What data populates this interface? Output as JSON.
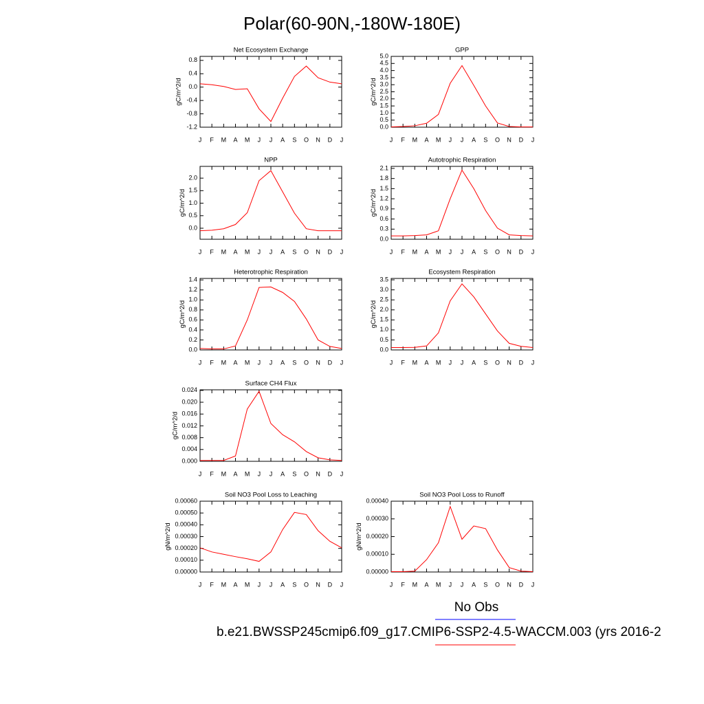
{
  "title": "Polar(60-90N,-180W-180E)",
  "legend": [
    {
      "label": "No Obs",
      "color": "#0000ff"
    },
    {
      "label": "b.e21.BWSSP245cmip6.f09_g17.CMIP6-SSP2-4.5-WACCM.003 (yrs 2016-2",
      "color": "#ff0000"
    }
  ],
  "chart_data": [
    {
      "type": "line",
      "title": "Net Ecosystem Exchange",
      "ylabel": "gC/m^2/d",
      "color": "#ff0000",
      "categories": [
        "J",
        "F",
        "M",
        "A",
        "M",
        "J",
        "J",
        "A",
        "S",
        "O",
        "N",
        "D",
        "J"
      ],
      "values": [
        0.1,
        0.07,
        0.02,
        -0.07,
        -0.05,
        -0.65,
        -1.03,
        -0.33,
        0.32,
        0.63,
        0.28,
        0.15,
        0.1
      ],
      "ylim": [
        -1.2,
        0.92
      ],
      "yticks": [
        -1.2,
        -0.8,
        -0.4,
        {
          "value": 0,
          "label": "0.0"
        },
        0.4,
        0.8
      ]
    },
    {
      "type": "line",
      "title": "GPP",
      "ylabel": "gC/m^2/d",
      "color": "#ff0000",
      "categories": [
        "J",
        "F",
        "M",
        "A",
        "M",
        "J",
        "J",
        "A",
        "S",
        "O",
        "N",
        "D",
        "J"
      ],
      "values": [
        0.02,
        0.05,
        0.1,
        0.28,
        0.9,
        3.1,
        4.35,
        2.95,
        1.5,
        0.3,
        0.05,
        0.02,
        0.02
      ],
      "ylim": [
        0,
        5
      ],
      "yticks": [
        {
          "value": 0,
          "label": "0.0"
        },
        0.5,
        {
          "value": 1,
          "label": "1.0"
        },
        1.5,
        {
          "value": 2,
          "label": "2.0"
        },
        2.5,
        {
          "value": 3,
          "label": "3.0"
        },
        3.5,
        {
          "value": 4,
          "label": "4.0"
        },
        4.5,
        {
          "value": 5,
          "label": "5.0"
        }
      ]
    },
    {
      "type": "line",
      "title": "NPP",
      "ylabel": "gC/m^2/d",
      "color": "#ff0000",
      "categories": [
        "J",
        "F",
        "M",
        "A",
        "M",
        "J",
        "J",
        "A",
        "S",
        "O",
        "N",
        "D",
        "J"
      ],
      "values": [
        -0.1,
        -0.08,
        -0.02,
        0.15,
        0.62,
        1.9,
        2.3,
        1.45,
        0.6,
        -0.02,
        -0.1,
        -0.1,
        -0.1
      ],
      "ylim": [
        -0.44,
        2.47
      ],
      "yticks": [
        {
          "value": 0,
          "label": "0.0"
        },
        0.5,
        {
          "value": 1,
          "label": "1.0"
        },
        1.5,
        {
          "value": 2,
          "label": "2.0"
        }
      ]
    },
    {
      "type": "line",
      "title": "Autotrophic Respiration",
      "ylabel": "gC/m^2/d",
      "color": "#ff0000",
      "categories": [
        "J",
        "F",
        "M",
        "A",
        "M",
        "J",
        "J",
        "A",
        "S",
        "O",
        "N",
        "D",
        "J"
      ],
      "values": [
        0.1,
        0.1,
        0.11,
        0.13,
        0.25,
        1.2,
        2.05,
        1.5,
        0.85,
        0.33,
        0.13,
        0.11,
        0.1
      ],
      "ylim": [
        0,
        2.16
      ],
      "yticks": [
        {
          "value": 0,
          "label": "0.0"
        },
        0.3,
        0.6,
        0.9,
        1.2,
        1.5,
        1.8,
        2.1
      ]
    },
    {
      "type": "line",
      "title": "Heterotrophic Respiration",
      "ylabel": "gC/m^2/d",
      "color": "#ff0000",
      "categories": [
        "J",
        "F",
        "M",
        "A",
        "M",
        "J",
        "J",
        "A",
        "S",
        "O",
        "N",
        "D",
        "J"
      ],
      "values": [
        0.03,
        0.02,
        0.02,
        0.08,
        0.6,
        1.25,
        1.26,
        1.15,
        0.97,
        0.62,
        0.2,
        0.07,
        0.03
      ],
      "ylim": [
        0,
        1.43
      ],
      "yticks": [
        {
          "value": 0,
          "label": "0.0"
        },
        0.2,
        0.4,
        0.6,
        0.8,
        {
          "value": 1,
          "label": "1.0"
        },
        1.2,
        1.4
      ]
    },
    {
      "type": "line",
      "title": "Ecosystem Respiration",
      "ylabel": "gC/m^2/d",
      "color": "#ff0000",
      "categories": [
        "J",
        "F",
        "M",
        "A",
        "M",
        "J",
        "J",
        "A",
        "S",
        "O",
        "N",
        "D",
        "J"
      ],
      "values": [
        0.12,
        0.12,
        0.13,
        0.2,
        0.85,
        2.45,
        3.3,
        2.65,
        1.8,
        0.95,
        0.33,
        0.18,
        0.12
      ],
      "ylim": [
        0,
        3.57
      ],
      "yticks": [
        {
          "value": 0,
          "label": "0.0"
        },
        0.5,
        {
          "value": 1,
          "label": "1.0"
        },
        1.5,
        {
          "value": 2,
          "label": "2.0"
        },
        2.5,
        {
          "value": 3,
          "label": "3.0"
        },
        3.5
      ]
    },
    {
      "type": "line",
      "title": "Surface CH4 Flux",
      "ylabel": "gC/m^2/d",
      "color": "#ff0000",
      "categories": [
        "J",
        "F",
        "M",
        "A",
        "M",
        "J",
        "J",
        "A",
        "S",
        "O",
        "N",
        "D",
        "J"
      ],
      "values": [
        0.0003,
        0.0003,
        0.0003,
        0.0018,
        0.0177,
        0.0237,
        0.0128,
        0.009,
        0.0066,
        0.0033,
        0.0012,
        0.0005,
        0.0003
      ],
      "ylim": [
        0,
        0.0242
      ],
      "yticks": [
        {
          "value": 0,
          "label": "0.000"
        },
        0.004,
        0.008,
        0.012,
        0.016,
        {
          "value": 0.02,
          "label": "0.020"
        },
        0.024
      ]
    },
    {
      "type": "line",
      "title": "Soil NO3 Pool Loss to Leaching",
      "ylabel": "gN/m^2/d",
      "color": "#ff0000",
      "categories": [
        "J",
        "F",
        "M",
        "A",
        "M",
        "J",
        "J",
        "A",
        "S",
        "O",
        "N",
        "D",
        "J"
      ],
      "values": [
        0.000205,
        0.00017,
        0.00015,
        0.00013,
        0.000112,
        9e-05,
        0.00017,
        0.00036,
        0.000505,
        0.000487,
        0.00035,
        0.00026,
        0.000205
      ],
      "ylim": [
        0,
        0.0006
      ],
      "yticks": [
        {
          "value": 0,
          "label": "0.00000"
        },
        {
          "value": 0.0001,
          "label": "0.00010"
        },
        {
          "value": 0.0002,
          "label": "0.00020"
        },
        {
          "value": 0.0003,
          "label": "0.00030"
        },
        {
          "value": 0.0004,
          "label": "0.00040"
        },
        {
          "value": 0.0005,
          "label": "0.00050"
        },
        {
          "value": 0.0006,
          "label": "0.00060"
        }
      ]
    },
    {
      "type": "line",
      "title": "Soil NO3 Pool Loss to Runoff",
      "ylabel": "gN/m^2/d",
      "color": "#ff0000",
      "categories": [
        "J",
        "F",
        "M",
        "A",
        "M",
        "J",
        "J",
        "A",
        "S",
        "O",
        "N",
        "D",
        "J"
      ],
      "values": [
        2e-06,
        2e-06,
        5e-06,
        7e-05,
        0.000165,
        0.00037,
        0.000185,
        0.00026,
        0.000245,
        0.000125,
        2.5e-05,
        5e-06,
        2e-06
      ],
      "ylim": [
        0,
        0.0004
      ],
      "yticks": [
        {
          "value": 0,
          "label": "0.00000"
        },
        {
          "value": 0.0001,
          "label": "0.00010"
        },
        {
          "value": 0.0002,
          "label": "0.00020"
        },
        {
          "value": 0.0003,
          "label": "0.00030"
        },
        {
          "value": 0.0004,
          "label": "0.00040"
        }
      ]
    }
  ]
}
